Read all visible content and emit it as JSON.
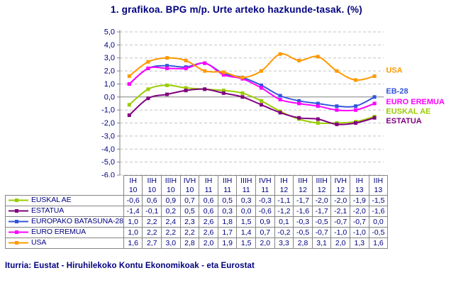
{
  "chart_data": {
    "type": "line",
    "title": "1. grafikoa. BPG m/p. Urte arteko hazkunde-tasak. (%)",
    "categories": [
      "IH 10",
      "IIH 10",
      "IIIH 10",
      "IVH 10",
      "IH 11",
      "IIH 11",
      "IIIH 11",
      "IVH 11",
      "IH 12",
      "IIH 12",
      "IIIH 12",
      "IVH 12",
      "IH 13",
      "IIH 13"
    ],
    "ylim": [
      -6.0,
      5.0
    ],
    "ytick_step": 1.0,
    "yticks": [
      "5,0",
      "4,0",
      "3,0",
      "2,0",
      "1,0",
      "0,0",
      "-1,0",
      "-2,0",
      "-3,0",
      "-4,0",
      "-5,0",
      "-6,0"
    ],
    "grid": "horizontal-dashed",
    "legend_position": "data-table-left",
    "series": [
      {
        "name": "EUSKAL AE",
        "chart_label": "EUSKAL AE",
        "color": "#99CC00",
        "label_dy": -8,
        "values": [
          -0.6,
          0.6,
          0.9,
          0.7,
          0.6,
          0.5,
          0.3,
          -0.3,
          -1.1,
          -1.7,
          -2.0,
          -2.0,
          -1.9,
          -1.5
        ]
      },
      {
        "name": "ESTATUA",
        "chart_label": "ESTATUA",
        "color": "#800080",
        "label_dy": 4,
        "values": [
          -1.4,
          -0.1,
          0.2,
          0.5,
          0.6,
          0.3,
          0.0,
          -0.6,
          -1.2,
          -1.6,
          -1.7,
          -2.1,
          -2.0,
          -1.6
        ]
      },
      {
        "name": "EUROPAKO BATASUNA-28",
        "chart_label": "EB-28",
        "color": "#3355DD",
        "label_dy": -9,
        "values": [
          1.0,
          2.2,
          2.4,
          2.3,
          2.6,
          1.8,
          1.5,
          0.9,
          0.1,
          -0.3,
          -0.5,
          -0.7,
          -0.7,
          0.0
        ]
      },
      {
        "name": "EURO EREMUA",
        "chart_label": "EURO EREMUA",
        "color": "#FF00FF",
        "label_dy": -3,
        "values": [
          1.0,
          2.2,
          2.2,
          2.2,
          2.6,
          1.7,
          1.4,
          0.7,
          -0.2,
          -0.5,
          -0.7,
          -1.0,
          -1.0,
          -0.5
        ]
      },
      {
        "name": "USA",
        "chart_label": "USA",
        "color": "#FF9900",
        "label_dy": -9,
        "values": [
          1.6,
          2.7,
          3.0,
          2.8,
          2.0,
          1.9,
          1.5,
          2.0,
          3.3,
          2.8,
          3.1,
          2.0,
          1.3,
          1.6
        ]
      }
    ]
  },
  "footer": {
    "source": "Iturria: Eustat - Hiruhilekoko Kontu Ekonomikoak - eta Eurostat"
  },
  "colors": {
    "text": "#000080",
    "gridline": "#C4C4C4",
    "zero_line": "#808080",
    "axis": "#808080",
    "table_border": "#858585"
  }
}
